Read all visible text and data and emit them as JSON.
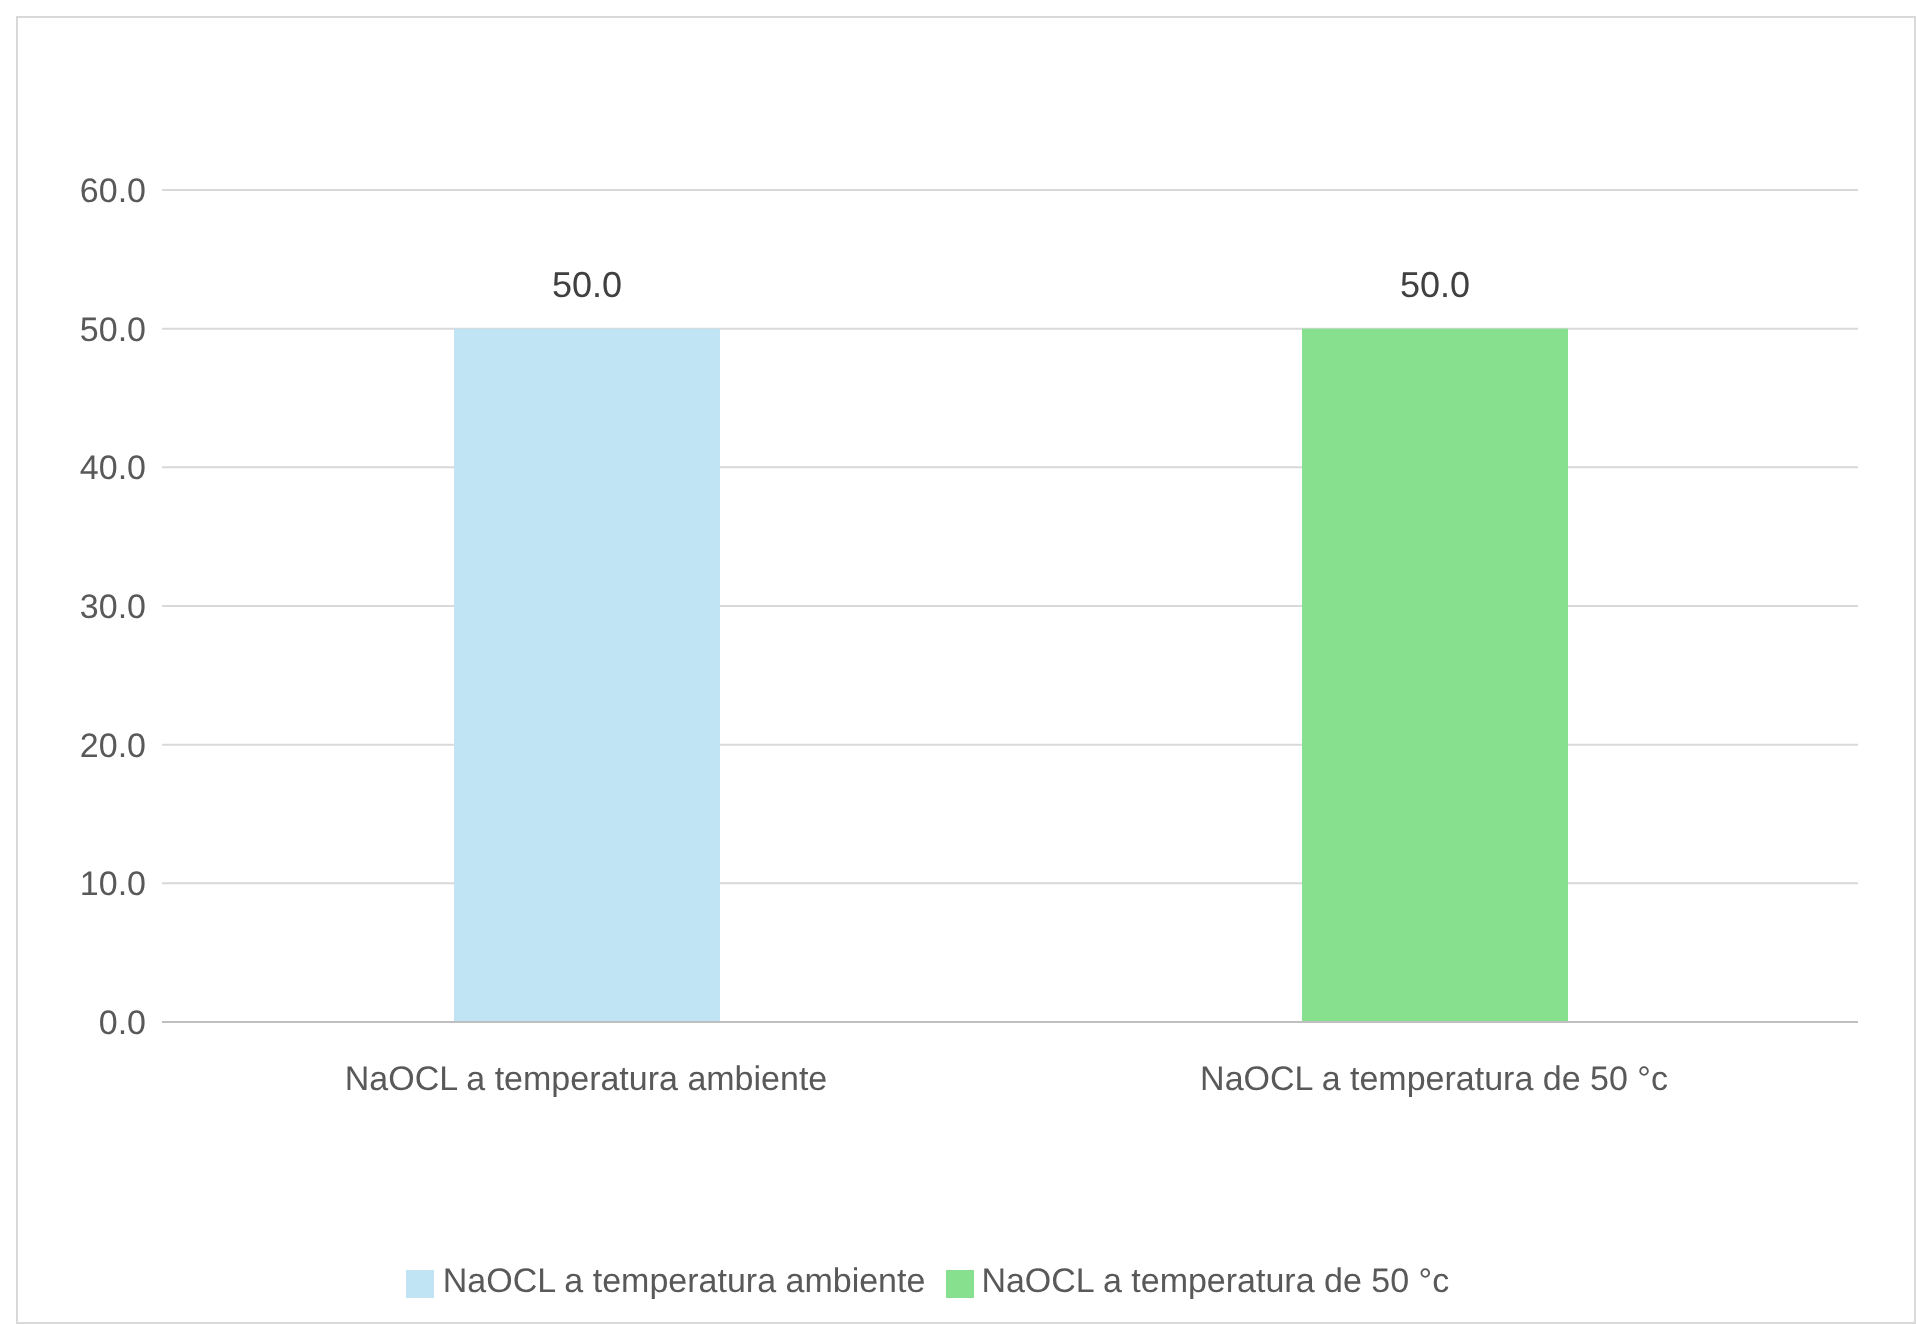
{
  "chart_data": {
    "type": "bar",
    "categories": [
      "NaOCL  a temperatura ambiente",
      "NaOCL a temperatura de 50 °c"
    ],
    "series": [
      {
        "name": "NaOCL  a temperatura ambiente",
        "color": "#c0e4f4",
        "values": [
          50.0,
          null
        ],
        "value_labels": [
          "50.0",
          null
        ]
      },
      {
        "name": "NaOCL a temperatura de 50 °c",
        "color": "#86e08e",
        "values": [
          null,
          50.0
        ],
        "value_labels": [
          null,
          "50.0"
        ]
      }
    ],
    "stacked": true,
    "ylim": [
      0,
      60
    ],
    "yticks": [
      {
        "value": 0,
        "label": "0.0"
      },
      {
        "value": 10,
        "label": "10.0"
      },
      {
        "value": 20,
        "label": "20.0"
      },
      {
        "value": 30,
        "label": "30.0"
      },
      {
        "value": 40,
        "label": "40.0"
      },
      {
        "value": 50,
        "label": "50.0"
      },
      {
        "value": 60,
        "label": "60.0"
      }
    ],
    "grid": "y",
    "legend": "bottom"
  }
}
